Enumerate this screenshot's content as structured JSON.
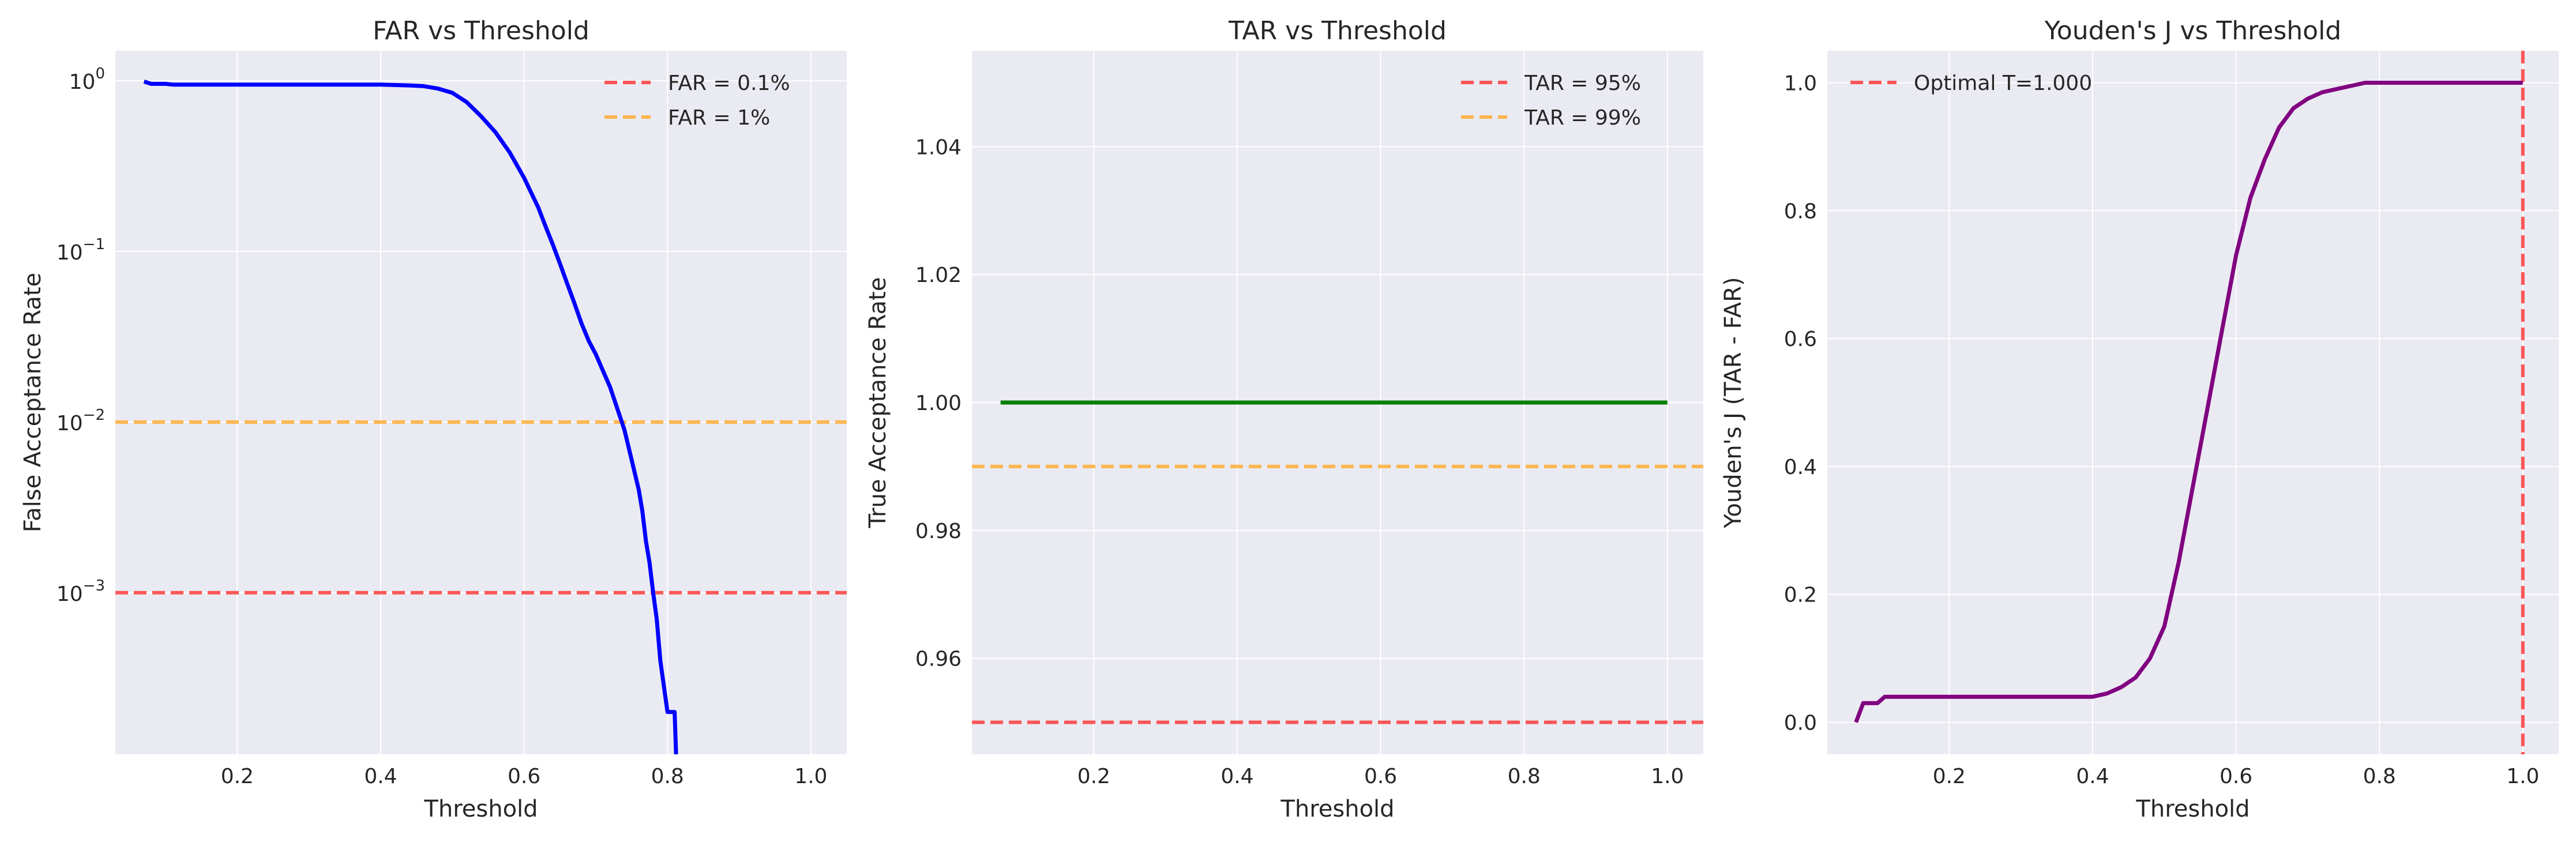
{
  "colors": {
    "plot_bg": "#eaeaf2",
    "grid": "#ffffff",
    "red": "#ff3b3b",
    "orange": "#ffad33",
    "blue": "#0000ff",
    "green": "#008000",
    "purple": "#800080"
  },
  "chart_data": [
    {
      "type": "line",
      "title": "FAR vs Threshold",
      "xlabel": "Threshold",
      "ylabel": "False Acceptance Rate",
      "yscale": "log",
      "xlim": [
        0.03,
        1.05
      ],
      "ylim": [
        0.000113,
        1.5
      ],
      "xticks": [
        0.2,
        0.4,
        0.6,
        0.8,
        1.0
      ],
      "xtick_labels": [
        "0.2",
        "0.4",
        "0.6",
        "0.8",
        "1.0"
      ],
      "yticks": [
        1,
        0.1,
        0.01,
        0.001
      ],
      "ytick_labels": [
        {
          "base": "10",
          "exp": "0"
        },
        {
          "base": "10",
          "exp": "−1"
        },
        {
          "base": "10",
          "exp": "−2"
        },
        {
          "base": "10",
          "exp": "−3"
        }
      ],
      "grid": true,
      "legend": "top-right",
      "hlines": [
        {
          "label": "FAR = 0.1%",
          "y": 0.001,
          "color": "#ff3b3b",
          "style": "dashed"
        },
        {
          "label": "FAR = 1%",
          "y": 0.01,
          "color": "#ffad33",
          "style": "dashed"
        }
      ],
      "vlines": [],
      "series": [
        {
          "color": "#0000ff",
          "x": [
            0.07,
            0.08,
            0.1,
            0.11,
            0.15,
            0.2,
            0.3,
            0.4,
            0.44,
            0.46,
            0.48,
            0.5,
            0.52,
            0.54,
            0.56,
            0.58,
            0.6,
            0.62,
            0.63,
            0.64,
            0.65,
            0.66,
            0.67,
            0.68,
            0.69,
            0.7,
            0.71,
            0.72,
            0.73,
            0.74,
            0.75,
            0.76,
            0.765,
            0.77,
            0.775,
            0.78,
            0.785,
            0.79,
            0.8,
            0.81,
            0.812
          ],
          "y": [
            0.99,
            0.96,
            0.96,
            0.95,
            0.95,
            0.95,
            0.95,
            0.95,
            0.94,
            0.93,
            0.9,
            0.85,
            0.75,
            0.62,
            0.5,
            0.38,
            0.27,
            0.18,
            0.14,
            0.11,
            0.085,
            0.065,
            0.05,
            0.038,
            0.03,
            0.025,
            0.02,
            0.016,
            0.012,
            0.009,
            0.006,
            0.004,
            0.003,
            0.002,
            0.0015,
            0.001,
            0.0007,
            0.0004,
            0.0002,
            0.0002,
            0.000113
          ]
        }
      ]
    },
    {
      "type": "line",
      "title": "TAR vs Threshold",
      "xlabel": "Threshold",
      "ylabel": "True Acceptance Rate",
      "xlim": [
        0.03,
        1.05
      ],
      "ylim": [
        0.945,
        1.055
      ],
      "xticks": [
        0.2,
        0.4,
        0.6,
        0.8,
        1.0
      ],
      "xtick_labels": [
        "0.2",
        "0.4",
        "0.6",
        "0.8",
        "1.0"
      ],
      "yticks": [
        0.96,
        0.98,
        1.0,
        1.02,
        1.04
      ],
      "ytick_labels": [
        "0.96",
        "0.98",
        "1.00",
        "1.02",
        "1.04"
      ],
      "grid": true,
      "legend": "top-right",
      "hlines": [
        {
          "label": "TAR = 95%",
          "y": 0.95,
          "color": "#ff3b3b",
          "style": "dashed"
        },
        {
          "label": "TAR = 99%",
          "y": 0.99,
          "color": "#ffad33",
          "style": "dashed"
        }
      ],
      "vlines": [],
      "series": [
        {
          "color": "#008000",
          "x": [
            0.07,
            1.0
          ],
          "y": [
            1.0,
            1.0
          ]
        }
      ]
    },
    {
      "type": "line",
      "title": "Youden's J vs Threshold",
      "xlabel": "Threshold",
      "ylabel": "Youden's J (TAR - FAR)",
      "xlim": [
        0.03,
        1.05
      ],
      "ylim": [
        -0.05,
        1.05
      ],
      "xticks": [
        0.2,
        0.4,
        0.6,
        0.8,
        1.0
      ],
      "xtick_labels": [
        "0.2",
        "0.4",
        "0.6",
        "0.8",
        "1.0"
      ],
      "yticks": [
        0.0,
        0.2,
        0.4,
        0.6,
        0.8,
        1.0
      ],
      "ytick_labels": [
        "0.0",
        "0.2",
        "0.4",
        "0.6",
        "0.8",
        "1.0"
      ],
      "grid": true,
      "legend": "top-left",
      "hlines": [],
      "vlines": [
        {
          "label": "Optimal T=1.000",
          "x": 1.0,
          "color": "#ff3b3b",
          "style": "dashed"
        }
      ],
      "series": [
        {
          "color": "#800080",
          "x": [
            0.07,
            0.08,
            0.1,
            0.11,
            0.12,
            0.2,
            0.3,
            0.4,
            0.42,
            0.44,
            0.46,
            0.48,
            0.5,
            0.52,
            0.54,
            0.56,
            0.58,
            0.6,
            0.62,
            0.64,
            0.66,
            0.68,
            0.7,
            0.72,
            0.74,
            0.76,
            0.78,
            0.8,
            0.9,
            1.0
          ],
          "y": [
            0.0,
            0.03,
            0.03,
            0.04,
            0.04,
            0.04,
            0.04,
            0.04,
            0.045,
            0.055,
            0.07,
            0.1,
            0.15,
            0.25,
            0.37,
            0.49,
            0.61,
            0.73,
            0.82,
            0.88,
            0.93,
            0.96,
            0.975,
            0.985,
            0.99,
            0.995,
            1.0,
            1.0,
            1.0,
            1.0
          ]
        }
      ]
    }
  ]
}
